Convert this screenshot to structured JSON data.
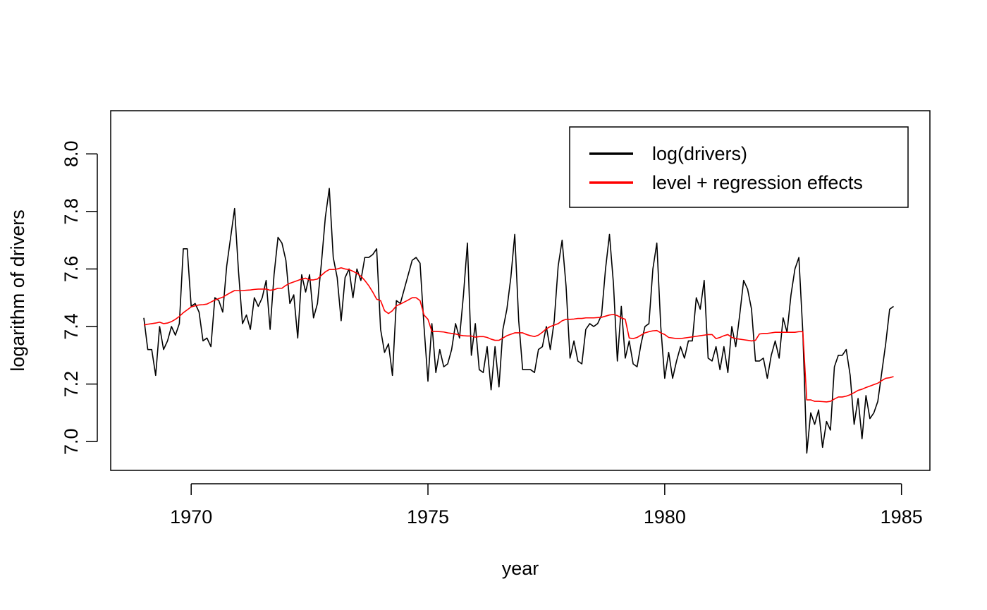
{
  "chart_data": {
    "type": "line",
    "xlabel": "year",
    "ylabel": "logarithm of drivers",
    "xlim": [
      1968.3,
      1985.6
    ],
    "ylim": [
      6.9,
      8.15
    ],
    "x_ticks": [
      1970,
      1975,
      1980,
      1985
    ],
    "x_tick_labels": [
      "1970",
      "1975",
      "1980",
      "1985"
    ],
    "y_ticks": [
      7.0,
      7.2,
      7.4,
      7.6,
      7.8,
      8.0
    ],
    "y_tick_labels": [
      "7.0",
      "7.2",
      "7.4",
      "7.6",
      "7.8",
      "8.0"
    ],
    "grid": false,
    "legend_position": "top-right",
    "x_start": 1969,
    "x_step": 0.0833333,
    "series": [
      {
        "name": "log(drivers)",
        "color": "#000000",
        "values": [
          7.43,
          7.32,
          7.32,
          7.23,
          7.4,
          7.32,
          7.35,
          7.4,
          7.37,
          7.41,
          7.67,
          7.67,
          7.47,
          7.48,
          7.45,
          7.35,
          7.36,
          7.33,
          7.5,
          7.49,
          7.45,
          7.61,
          7.71,
          7.81,
          7.59,
          7.41,
          7.44,
          7.39,
          7.5,
          7.47,
          7.5,
          7.56,
          7.39,
          7.58,
          7.71,
          7.69,
          7.63,
          7.48,
          7.51,
          7.36,
          7.58,
          7.52,
          7.58,
          7.43,
          7.48,
          7.62,
          7.78,
          7.88,
          7.64,
          7.57,
          7.42,
          7.57,
          7.6,
          7.5,
          7.6,
          7.56,
          7.64,
          7.64,
          7.65,
          7.67,
          7.39,
          7.31,
          7.34,
          7.23,
          7.49,
          7.48,
          7.53,
          7.58,
          7.63,
          7.64,
          7.62,
          7.4,
          7.21,
          7.41,
          7.24,
          7.32,
          7.26,
          7.27,
          7.32,
          7.41,
          7.36,
          7.51,
          7.69,
          7.3,
          7.41,
          7.25,
          7.24,
          7.33,
          7.18,
          7.33,
          7.19,
          7.39,
          7.46,
          7.57,
          7.72,
          7.42,
          7.25,
          7.25,
          7.25,
          7.24,
          7.32,
          7.33,
          7.4,
          7.32,
          7.42,
          7.61,
          7.7,
          7.54,
          7.29,
          7.35,
          7.28,
          7.27,
          7.39,
          7.41,
          7.4,
          7.41,
          7.44,
          7.6,
          7.72,
          7.55,
          7.28,
          7.47,
          7.29,
          7.35,
          7.27,
          7.26,
          7.34,
          7.4,
          7.41,
          7.6,
          7.69,
          7.4,
          7.22,
          7.31,
          7.22,
          7.28,
          7.33,
          7.29,
          7.35,
          7.35,
          7.5,
          7.46,
          7.56,
          7.29,
          7.28,
          7.33,
          7.25,
          7.33,
          7.24,
          7.4,
          7.33,
          7.44,
          7.56,
          7.53,
          7.46,
          7.28,
          7.28,
          7.29,
          7.22,
          7.3,
          7.35,
          7.29,
          7.43,
          7.38,
          7.51,
          7.6,
          7.64,
          7.38,
          6.96,
          7.1,
          7.06,
          7.11,
          6.98,
          7.07,
          7.04,
          7.26,
          7.3,
          7.3,
          7.32,
          7.23,
          7.06,
          7.15,
          7.01,
          7.16,
          7.08,
          7.1,
          7.14,
          7.24,
          7.34,
          7.46,
          7.47
        ]
      },
      {
        "name": "level + regression effects",
        "color": "#ff0000",
        "values": [
          7.405,
          7.408,
          7.41,
          7.412,
          7.415,
          7.41,
          7.412,
          7.417,
          7.425,
          7.435,
          7.448,
          7.458,
          7.468,
          7.472,
          7.475,
          7.476,
          7.478,
          7.485,
          7.492,
          7.497,
          7.502,
          7.51,
          7.518,
          7.525,
          7.525,
          7.525,
          7.526,
          7.527,
          7.529,
          7.53,
          7.53,
          7.53,
          7.526,
          7.528,
          7.533,
          7.533,
          7.543,
          7.55,
          7.555,
          7.56,
          7.565,
          7.568,
          7.562,
          7.562,
          7.565,
          7.578,
          7.59,
          7.598,
          7.598,
          7.6,
          7.604,
          7.6,
          7.598,
          7.592,
          7.585,
          7.575,
          7.56,
          7.542,
          7.52,
          7.495,
          7.49,
          7.455,
          7.445,
          7.455,
          7.472,
          7.478,
          7.485,
          7.492,
          7.5,
          7.5,
          7.49,
          7.44,
          7.425,
          7.383,
          7.383,
          7.382,
          7.381,
          7.378,
          7.376,
          7.374,
          7.37,
          7.368,
          7.367,
          7.367,
          7.363,
          7.365,
          7.365,
          7.362,
          7.356,
          7.352,
          7.352,
          7.36,
          7.368,
          7.373,
          7.378,
          7.378,
          7.378,
          7.372,
          7.368,
          7.365,
          7.37,
          7.38,
          7.392,
          7.4,
          7.405,
          7.41,
          7.42,
          7.425,
          7.425,
          7.426,
          7.428,
          7.428,
          7.43,
          7.43,
          7.43,
          7.431,
          7.432,
          7.436,
          7.44,
          7.442,
          7.438,
          7.43,
          7.425,
          7.36,
          7.358,
          7.362,
          7.37,
          7.378,
          7.382,
          7.385,
          7.386,
          7.378,
          7.372,
          7.362,
          7.36,
          7.358,
          7.358,
          7.36,
          7.362,
          7.364,
          7.366,
          7.368,
          7.37,
          7.372,
          7.372,
          7.358,
          7.362,
          7.368,
          7.372,
          7.362,
          7.358,
          7.356,
          7.354,
          7.352,
          7.35,
          7.352,
          7.374,
          7.376,
          7.376,
          7.378,
          7.38,
          7.38,
          7.38,
          7.38,
          7.38,
          7.38,
          7.382,
          7.382,
          7.145,
          7.145,
          7.14,
          7.14,
          7.139,
          7.138,
          7.14,
          7.148,
          7.155,
          7.155,
          7.158,
          7.163,
          7.17,
          7.178,
          7.182,
          7.188,
          7.193,
          7.198,
          7.203,
          7.212,
          7.22,
          7.222,
          7.226
        ]
      }
    ]
  }
}
